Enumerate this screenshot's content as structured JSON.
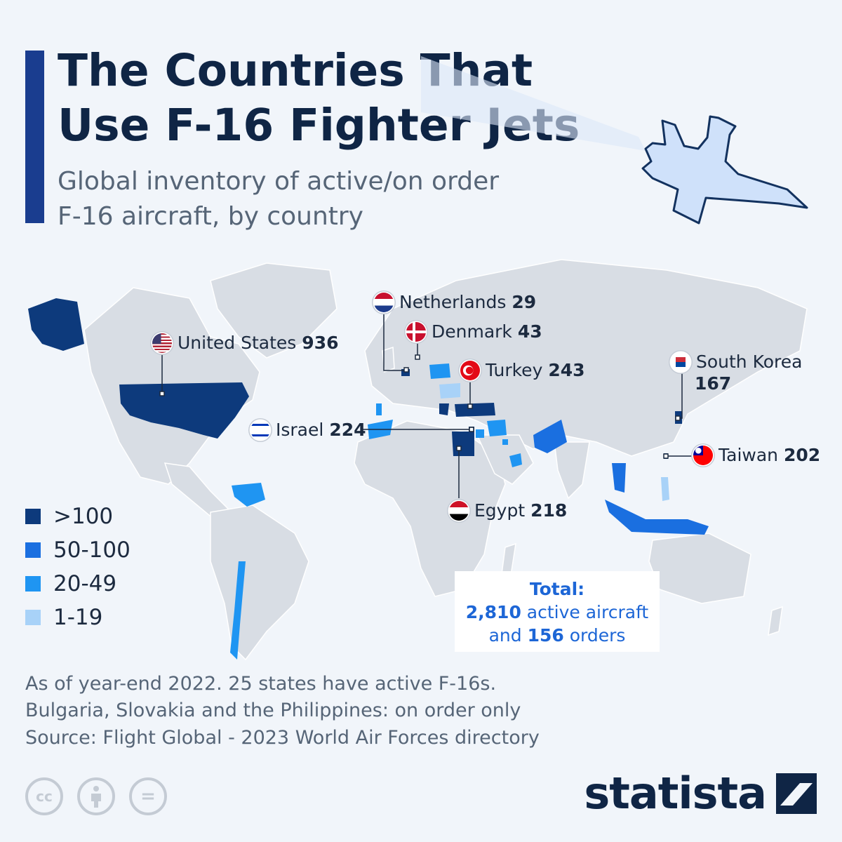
{
  "header": {
    "title_line1": "The Countries That",
    "title_line2": "Use F-16 Fighter Jets",
    "subtitle_line1": "Global inventory of active/on order",
    "subtitle_line2": "F-16 aircraft, by country"
  },
  "labels": {
    "netherlands": {
      "name": "Netherlands",
      "value": "29"
    },
    "denmark": {
      "name": "Denmark",
      "value": "43"
    },
    "united_states": {
      "name": "United States",
      "value": "936"
    },
    "turkey": {
      "name": "Turkey",
      "value": "243"
    },
    "south_korea": {
      "name": "South Korea",
      "value": "167"
    },
    "israel": {
      "name": "Israel",
      "value": "224"
    },
    "taiwan": {
      "name": "Taiwan",
      "value": "202"
    },
    "egypt": {
      "name": "Egypt",
      "value": "218"
    }
  },
  "legend": [
    {
      "label": ">100",
      "color": "#0d3a7c"
    },
    {
      "label": "50-100",
      "color": "#1a6fe0"
    },
    {
      "label": "20-49",
      "color": "#1f95f2"
    },
    {
      "label": "1-19",
      "color": "#a8d2f8"
    }
  ],
  "total": {
    "heading": "Total:",
    "active_value": "2,810",
    "active_text": "active aircraft",
    "orders_prefix": "and",
    "orders_value": "156",
    "orders_text": "orders"
  },
  "notes": {
    "line1": "As of year-end 2022. 25 states have active F-16s.",
    "line2": "Bulgaria, Slovakia and the Philippines: on order only"
  },
  "source": "Source: Flight Global - 2023 World Air Forces directory",
  "license_icons": [
    "cc-icon",
    "attribution-icon",
    "no-derivatives-icon"
  ],
  "license_text": {
    "cc": "cc",
    "nd": "="
  },
  "brand": "statista",
  "colors": {
    "background": "#f1f5fa",
    "land": "#d8dde4",
    "accent": "#1a3d8f",
    "title": "#0f2545",
    "total_text": "#1d66d6"
  }
}
